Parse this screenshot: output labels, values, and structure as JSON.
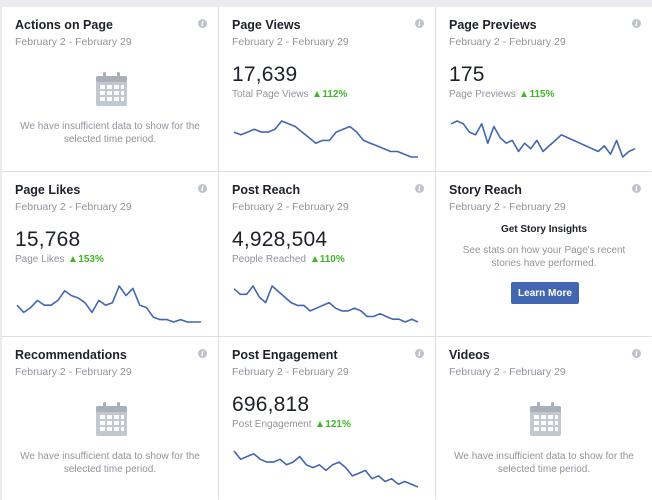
{
  "cards": [
    {
      "title": "Actions on Page",
      "date_range": "February 2 - February 29",
      "message": "We have insufficient data to show for the selected time period."
    },
    {
      "title": "Page Views",
      "date_range": "February 2 - February 29",
      "value": "17,639",
      "metric_label": "Total Page Views",
      "change": "112%"
    },
    {
      "title": "Page Previews",
      "date_range": "February 2 - February 29",
      "value": "175",
      "metric_label": "Page Previews",
      "change": "115%"
    },
    {
      "title": "Page Likes",
      "date_range": "February 2 - February 29",
      "value": "15,768",
      "metric_label": "Page Likes",
      "change": "153%"
    },
    {
      "title": "Post Reach",
      "date_range": "February 2 - February 29",
      "value": "4,928,504",
      "metric_label": "People Reached",
      "change": "110%"
    },
    {
      "title": "Story Reach",
      "date_range": "February 2 - February 29",
      "heading": "Get Story Insights",
      "description": "See stats on how your Page's recent stories have performed.",
      "button_label": "Learn More"
    },
    {
      "title": "Recommendations",
      "date_range": "February 2 - February 29",
      "message": "We have insufficient data to show for the selected time period."
    },
    {
      "title": "Post Engagement",
      "date_range": "February 2 - February 29",
      "value": "696,818",
      "metric_label": "Post Engagement",
      "change": "121%"
    },
    {
      "title": "Videos",
      "date_range": "February 2 - February 29",
      "message": "We have insufficient data to show for the selected time period."
    }
  ],
  "sparklines": {
    "page_views": [
      10,
      9,
      10,
      11,
      10,
      10,
      11,
      14,
      13,
      12,
      10,
      8,
      6,
      7,
      7,
      10,
      11,
      12,
      10,
      7,
      6,
      5,
      4,
      3,
      3,
      2,
      1,
      1
    ],
    "page_previews": [
      12,
      13,
      12,
      9,
      8,
      12,
      5,
      11,
      7,
      5,
      6,
      2,
      5,
      3,
      6,
      2,
      4,
      6,
      8,
      7,
      6,
      5,
      4,
      3,
      2,
      4,
      1,
      6,
      0,
      2,
      3
    ],
    "page_likes": [
      9,
      6,
      8,
      11,
      9,
      9,
      11,
      15,
      13,
      12,
      10,
      6,
      11,
      9,
      10,
      17,
      13,
      16,
      9,
      8,
      4,
      3,
      3,
      2,
      3,
      2,
      2,
      2
    ],
    "post_reach": [
      14,
      12,
      12,
      15,
      11,
      9,
      15,
      13,
      11,
      9,
      8,
      8,
      6,
      7,
      8,
      9,
      7,
      6,
      6,
      7,
      6,
      4,
      4,
      5,
      4,
      3,
      3,
      2,
      3,
      2
    ],
    "post_engagement": [
      14,
      11,
      12,
      13,
      11,
      10,
      10,
      11,
      9,
      10,
      12,
      9,
      8,
      9,
      7,
      9,
      10,
      8,
      5,
      6,
      7,
      4,
      5,
      3,
      4,
      2,
      3,
      2,
      1
    ]
  },
  "colors": {
    "sparkline": "#4267b2",
    "delta_up": "#42b72a",
    "button": "#4267b2"
  },
  "icons": {
    "info": "info-icon",
    "calendar": "calendar-icon",
    "delta": "triangle-up-icon"
  }
}
